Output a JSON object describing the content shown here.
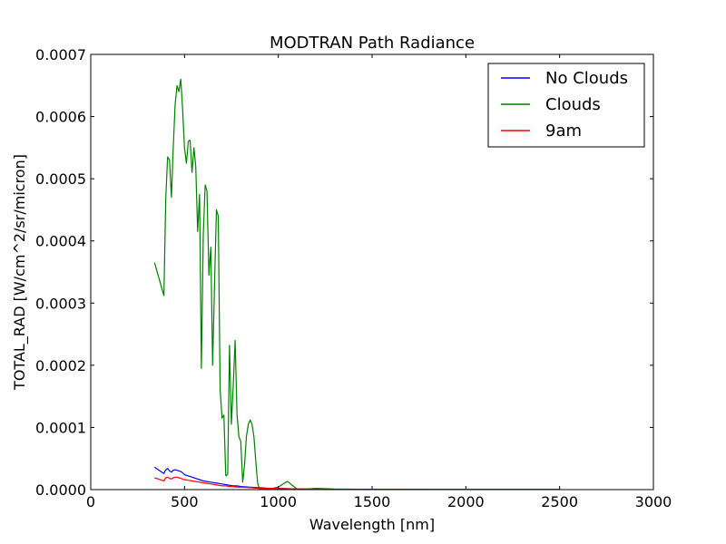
{
  "chart_data": {
    "type": "line",
    "title": "MODTRAN Path Radiance",
    "xlabel": "Wavelength [nm]",
    "ylabel": "TOTAL_RAD [W/cm^2/sr/micron]",
    "xlim": [
      0,
      3000
    ],
    "ylim": [
      0,
      0.0007
    ],
    "xticks": [
      0,
      500,
      1000,
      1500,
      2000,
      2500,
      3000
    ],
    "xtick_labels": [
      "0",
      "500",
      "1000",
      "1500",
      "2000",
      "2500",
      "3000"
    ],
    "yticks": [
      0,
      0.0001,
      0.0002,
      0.0003,
      0.0004,
      0.0005,
      0.0006,
      0.0007
    ],
    "ytick_labels": [
      "0.0000",
      "0.0001",
      "0.0002",
      "0.0003",
      "0.0004",
      "0.0005",
      "0.0006",
      "0.0007"
    ],
    "grid": false,
    "legend_position": "top-right",
    "series": [
      {
        "name": "No Clouds",
        "color": "#0000ff",
        "x": [
          340,
          360,
          390,
          400,
          410,
          420,
          430,
          440,
          450,
          460,
          470,
          480,
          490,
          500,
          520,
          540,
          560,
          580,
          600,
          620,
          640,
          660,
          680,
          700,
          720,
          740,
          760,
          780,
          800,
          850,
          900,
          950,
          1000,
          1100,
          1200,
          1300,
          1500,
          2000,
          2500
        ],
        "y": [
          3.6e-05,
          3.2e-05,
          2.6e-05,
          3.2e-05,
          3.4e-05,
          3e-05,
          2.8e-05,
          3.1e-05,
          3.2e-05,
          3.1e-05,
          3e-05,
          2.9e-05,
          2.7e-05,
          2.4e-05,
          2.2e-05,
          2e-05,
          1.8e-05,
          1.6e-05,
          1.4e-05,
          1.3e-05,
          1.2e-05,
          1.1e-05,
          1e-05,
          9e-06,
          8e-06,
          7e-06,
          6e-06,
          6e-06,
          5e-06,
          4e-06,
          3e-06,
          2e-06,
          2e-06,
          1e-06,
          1e-06,
          5e-07,
          3e-07,
          1e-07,
          1e-07
        ]
      },
      {
        "name": "Clouds",
        "color": "#008000",
        "x": [
          340,
          390,
          400,
          410,
          420,
          430,
          440,
          450,
          460,
          470,
          480,
          490,
          500,
          510,
          520,
          530,
          540,
          550,
          560,
          570,
          580,
          590,
          600,
          610,
          620,
          630,
          640,
          650,
          660,
          670,
          680,
          690,
          700,
          710,
          720,
          730,
          740,
          750,
          760,
          770,
          780,
          790,
          800,
          810,
          820,
          830,
          840,
          850,
          860,
          870,
          880,
          890,
          900,
          950,
          1000,
          1030,
          1050,
          1070,
          1100,
          1150,
          1200,
          1300,
          1500,
          2000,
          2500
        ],
        "y": [
          0.000365,
          0.000312,
          0.00047,
          0.000535,
          0.00053,
          0.00047,
          0.00055,
          0.00062,
          0.00065,
          0.00064,
          0.00066,
          0.00061,
          0.00055,
          0.000525,
          0.00056,
          0.000562,
          0.00051,
          0.00055,
          0.00052,
          0.000415,
          0.000475,
          0.000195,
          0.00041,
          0.00049,
          0.00048,
          0.000345,
          0.00039,
          0.0002,
          0.00033,
          0.00045,
          0.00044,
          0.00016,
          0.000115,
          0.00012,
          2.2e-05,
          2.5e-05,
          0.000232,
          0.000105,
          0.00017,
          0.00024,
          0.00012,
          8.45e-05,
          7.8e-05,
          1.2e-05,
          4e-05,
          8.5e-05,
          0.000105,
          0.000112,
          0.000105,
          8.5e-05,
          4.5e-05,
          1e-05,
          1e-06,
          1e-06,
          4e-06,
          1e-05,
          1.3e-05,
          8e-06,
          1e-06,
          1e-06,
          2e-06,
          1e-06,
          5e-07,
          2e-07,
          1e-07
        ]
      },
      {
        "name": "9am",
        "color": "#ff0000",
        "x": [
          340,
          360,
          390,
          400,
          410,
          420,
          430,
          440,
          450,
          460,
          470,
          480,
          490,
          500,
          520,
          540,
          560,
          580,
          600,
          620,
          640,
          660,
          680,
          700,
          720,
          740,
          760,
          780,
          800,
          850,
          900,
          950,
          1000,
          1100,
          1200,
          1300,
          1500,
          2000,
          2500
        ],
        "y": [
          1.9e-05,
          1.7e-05,
          1.4e-05,
          1.9e-05,
          2e-05,
          1.8e-05,
          1.7e-05,
          1.9e-05,
          2e-05,
          2e-05,
          1.9e-05,
          1.8e-05,
          1.7e-05,
          1.6e-05,
          1.5e-05,
          1.4e-05,
          1.3e-05,
          1.2e-05,
          1.1e-05,
          1e-05,
          9e-06,
          8e-06,
          7e-06,
          6e-06,
          6e-06,
          5e-06,
          5e-06,
          4e-06,
          4e-06,
          3e-06,
          2e-06,
          2e-06,
          2e-06,
          1e-06,
          1e-06,
          5e-07,
          3e-07,
          1e-07,
          1e-07
        ]
      }
    ]
  }
}
